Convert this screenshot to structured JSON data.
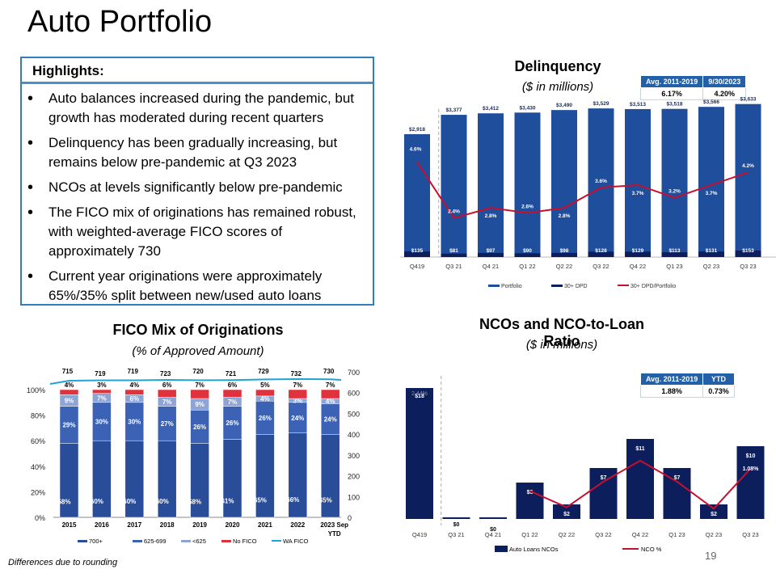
{
  "page": {
    "title": "Auto Portfolio",
    "footnote": "Differences due to rounding",
    "page_number": "19"
  },
  "highlights": {
    "heading": "Highlights:",
    "bullets": [
      "Auto balances increased during the pandemic, but growth has moderated during recent quarters",
      "Delinquency has been gradually increasing, but remains below pre-pandemic at Q3 2023",
      "NCOs at levels significantly below pre-pandemic",
      "The FICO mix of originations has remained robust, with weighted-average FICO scores of approximately 730",
      "Current year originations were approximately 65%/35% split between new/used auto loans"
    ]
  },
  "delinquency_table": {
    "headers": [
      "Avg. 2011-2019",
      "9/30/2023"
    ],
    "values": [
      "6.17%",
      "4.20%"
    ]
  },
  "nco_table": {
    "headers": [
      "Avg. 2011-2019",
      "YTD"
    ],
    "values": [
      "1.88%",
      "0.73%"
    ]
  },
  "colors": {
    "navy": "#0c1e5b",
    "blue": "#1f4e9c",
    "mid_blue": "#3a64b0",
    "light_blue": "#8fa7dc",
    "red": "#e0323c",
    "crimson": "#c8102e",
    "cyan": "#1fa3d8"
  },
  "chart_data": [
    {
      "id": "delinquency",
      "type": "bar",
      "title": "Delinquency",
      "subtitle": "($ in millions)",
      "categories": [
        "Q419",
        "Q3 21",
        "Q4 21",
        "Q1 22",
        "Q2 22",
        "Q3 22",
        "Q4 22",
        "Q1 23",
        "Q2 23",
        "Q3 23"
      ],
      "series": [
        {
          "name": "Portfolio",
          "values": [
            2918,
            3377,
            3412,
            3430,
            3490,
            3529,
            3513,
            3518,
            3566,
            3633
          ],
          "labels": [
            "$2,918",
            "$3,377",
            "$3,412",
            "$3,430",
            "$3,490",
            "$3,529",
            "$3,513",
            "$3,518",
            "$3,566",
            "$3,633"
          ]
        },
        {
          "name": "30+ DPD",
          "values": [
            135,
            81,
            97,
            90,
            98,
            128,
            129,
            113,
            131,
            153
          ],
          "labels": [
            "$135",
            "$81",
            "$97",
            "$90",
            "$98",
            "$128",
            "$129",
            "$113",
            "$131",
            "$153"
          ]
        },
        {
          "name": "30+ DPD/Portfolio",
          "values": [
            4.6,
            2.4,
            2.8,
            2.6,
            2.8,
            3.6,
            3.7,
            3.2,
            3.7,
            4.2
          ],
          "labels": [
            "4.6%",
            "2.4%",
            "2.8%",
            "2.6%",
            "2.8%",
            "3.6%",
            "3.7%",
            "3.2%",
            "3.7%",
            "4.2%"
          ]
        }
      ],
      "ylim": [
        0,
        3800
      ],
      "legend": [
        "Portfolio",
        "30+ DPD",
        "30+ DPD/Portfolio"
      ]
    },
    {
      "id": "fico",
      "type": "bar",
      "title": "FICO Mix of Originations",
      "subtitle": "(% of Approved Amount)",
      "categories": [
        "2015",
        "2016",
        "2017",
        "2018",
        "2019",
        "2020",
        "2021",
        "2022",
        "2023 Sep YTD"
      ],
      "series": [
        {
          "name": "700+",
          "values": [
            58,
            60,
            60,
            60,
            58,
            61,
            65,
            66,
            65
          ]
        },
        {
          "name": "625-699",
          "values": [
            29,
            30,
            30,
            27,
            26,
            26,
            26,
            24,
            24
          ]
        },
        {
          "name": "<625",
          "values": [
            9,
            7,
            6,
            7,
            9,
            7,
            4,
            3,
            4
          ]
        },
        {
          "name": "No FICO",
          "values": [
            4,
            3,
            4,
            6,
            7,
            6,
            5,
            7,
            7
          ]
        },
        {
          "name": "WA FICO",
          "values": [
            715,
            719,
            719,
            723,
            720,
            721,
            729,
            732,
            730
          ]
        }
      ],
      "y_left_ticks": [
        "0%",
        "20%",
        "40%",
        "60%",
        "80%",
        "100%"
      ],
      "y_right_ticks": [
        "0",
        "100",
        "200",
        "300",
        "400",
        "500",
        "600",
        "700"
      ],
      "ylim_left": [
        0,
        100
      ],
      "ylim_right": [
        0,
        800
      ],
      "legend": [
        "700+",
        "625-699",
        "<625",
        "No FICO",
        "WA FICO"
      ]
    },
    {
      "id": "nco",
      "type": "bar",
      "title": "NCOs and NCO-to-Loan Ratio",
      "subtitle": "($ in millions)",
      "categories": [
        "Q419",
        "Q3 21",
        "Q4 21",
        "Q1 22",
        "Q2 22",
        "Q3 22",
        "Q4 22",
        "Q1 23",
        "Q2 23",
        "Q3 23"
      ],
      "series": [
        {
          "name": "Auto Loans NCOs",
          "values": [
            18,
            0,
            0,
            5,
            2,
            7,
            11,
            7,
            2,
            10
          ],
          "labels": [
            "$18",
            "$0",
            "$0",
            "$5",
            "$2",
            "$7",
            "$11",
            "$7",
            "$2",
            "$10"
          ]
        },
        {
          "name": "NCO %",
          "values": [
            2.44,
            null,
            null,
            0.6,
            0.25,
            0.8,
            1.25,
            0.8,
            0.22,
            1.08
          ],
          "labels": [
            "2.44%",
            "",
            "",
            "",
            "",
            "",
            "",
            "",
            "",
            "1.08%"
          ]
        }
      ],
      "ylim": [
        0,
        20
      ],
      "legend": [
        "Auto Loans NCOs",
        "NCO %"
      ]
    }
  ]
}
